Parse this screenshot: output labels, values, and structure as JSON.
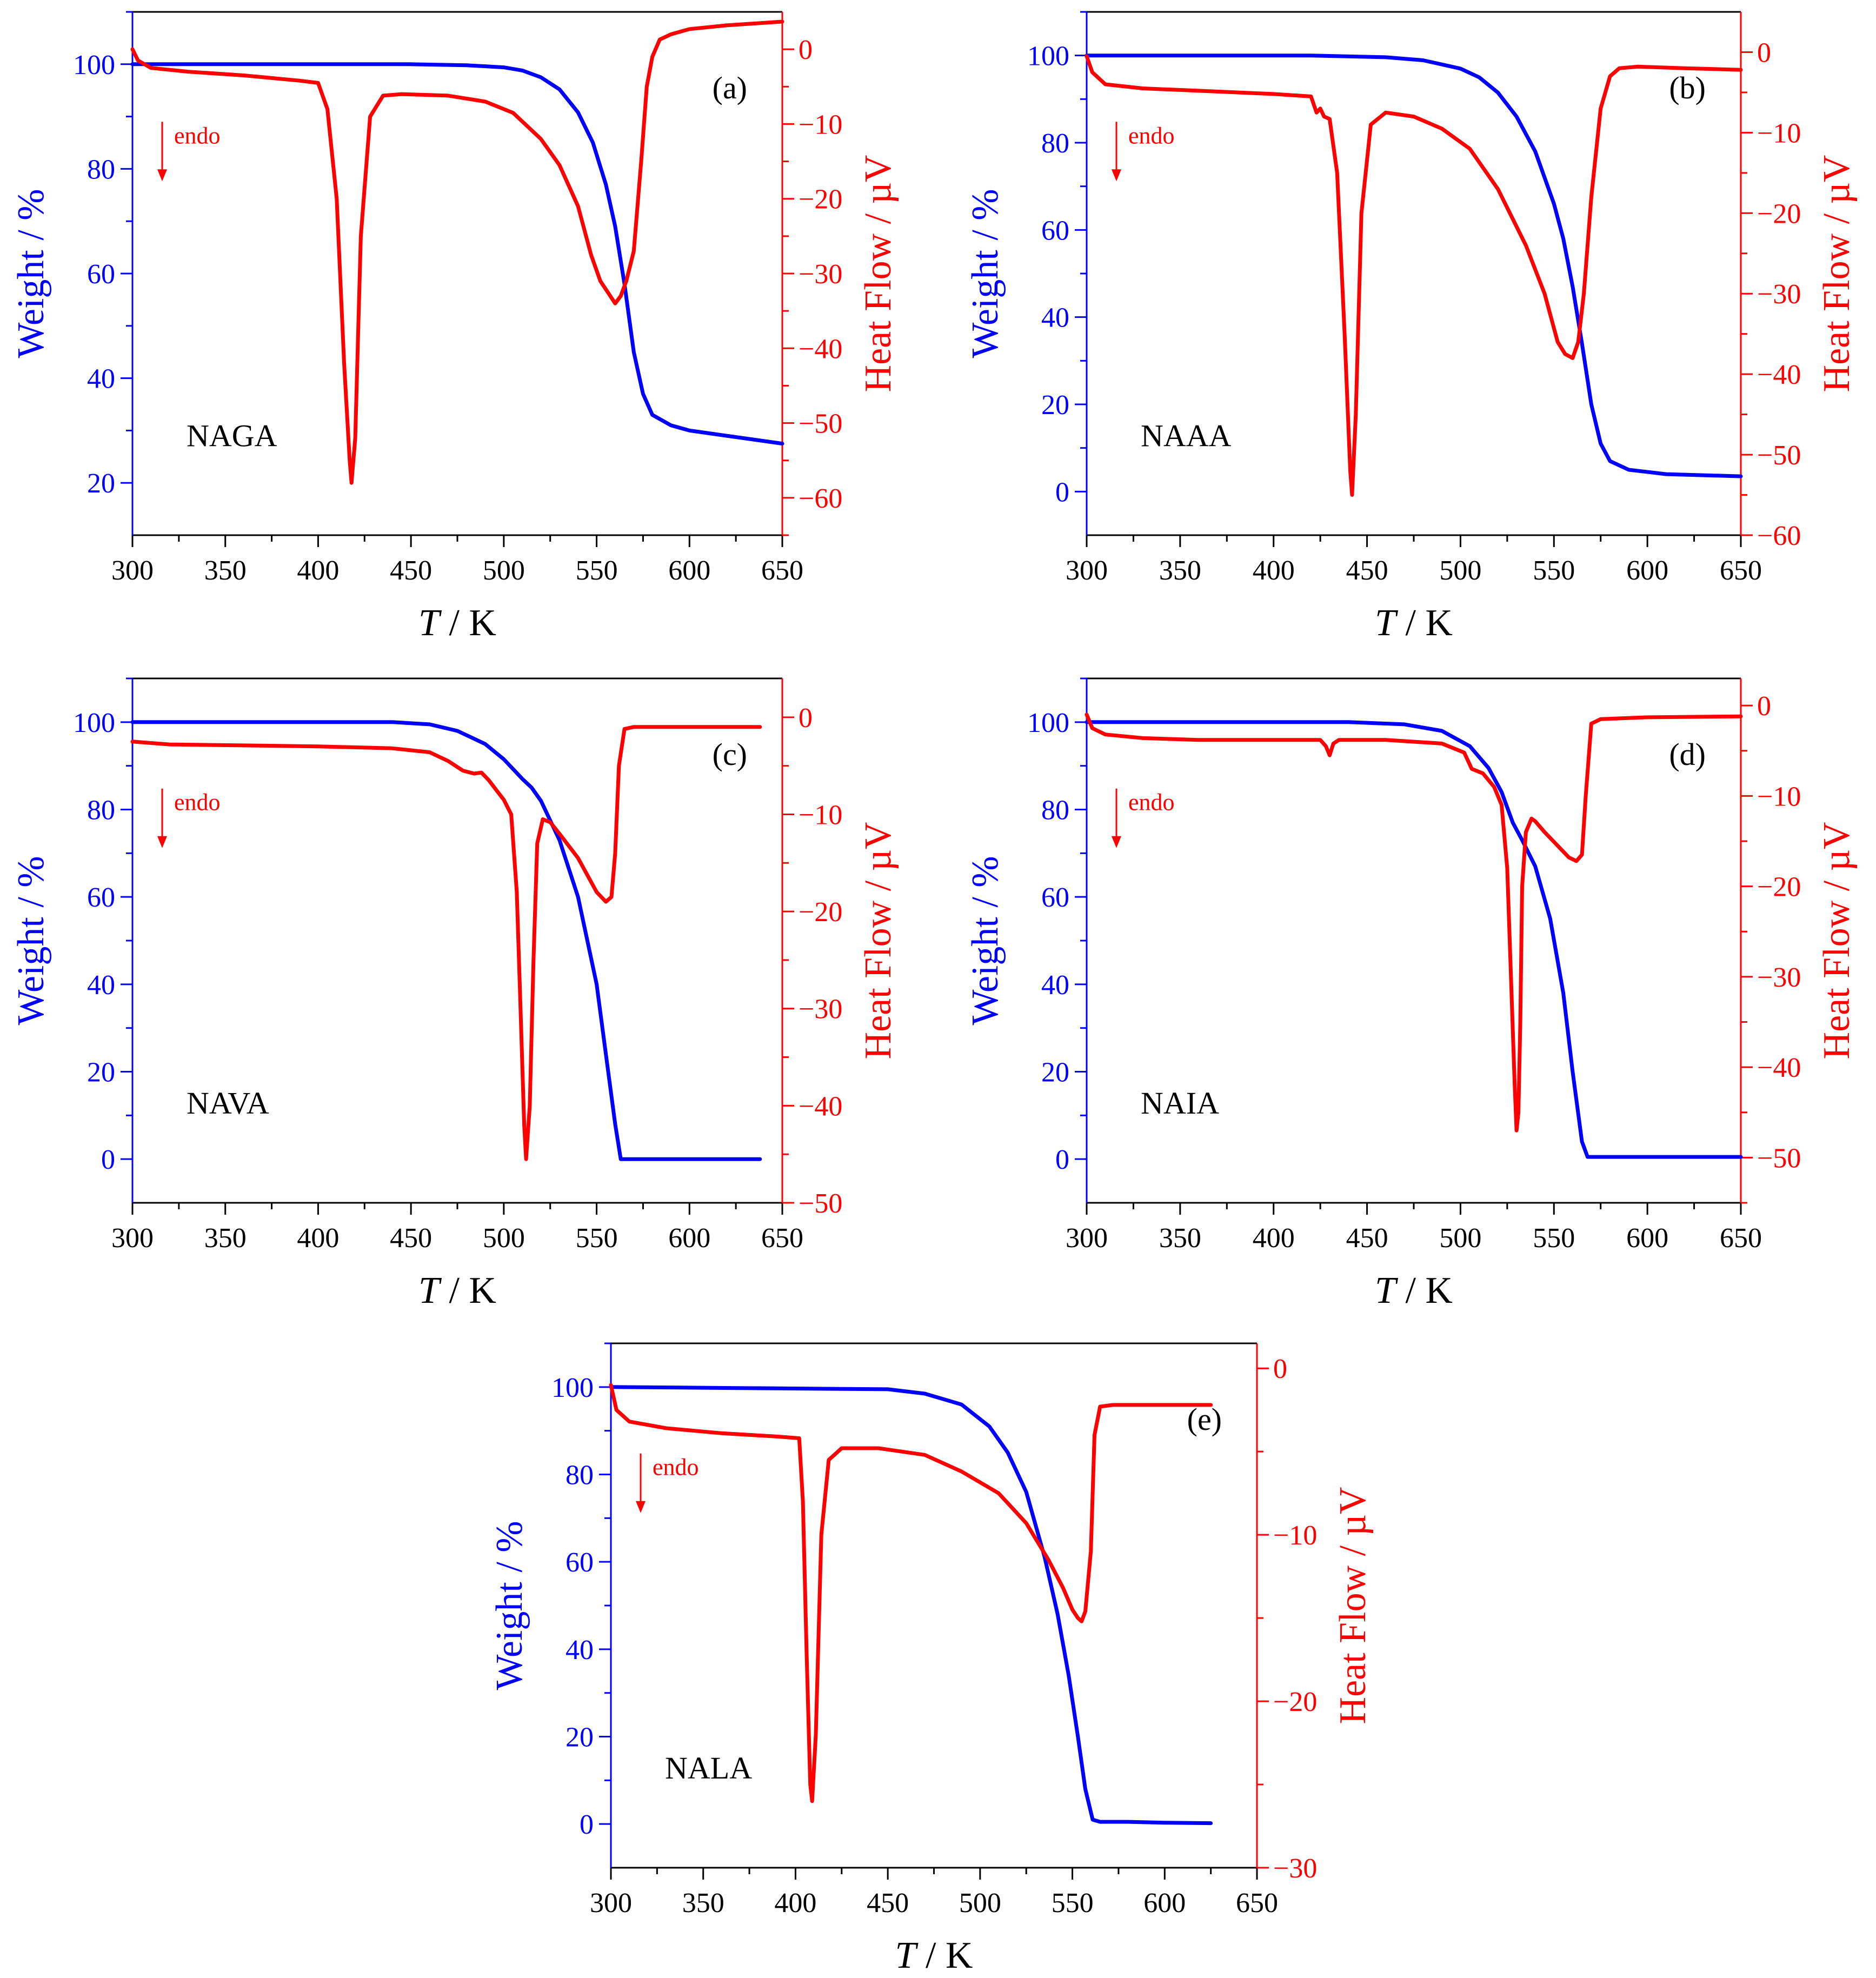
{
  "figure": {
    "description_colors": {
      "weight": "#0000ff",
      "heat_flow": "#ff0000",
      "axis": "#000000"
    }
  },
  "chart_data": [
    {
      "panel": "(a)",
      "sample": "NAGA",
      "type": "line",
      "xlabel_italic": "T",
      "xlabel_unit": " / K",
      "ylabel_left": "Weight / %",
      "ylabel_right": "Heat Flow / µV",
      "endo_label": "endo",
      "xlim": [
        300,
        650
      ],
      "ylim_left": [
        10,
        110
      ],
      "ylim_right": [
        -65,
        5
      ],
      "xticks": [
        300,
        350,
        400,
        450,
        500,
        550,
        600,
        650
      ],
      "xtick_labels": [
        "300",
        "350",
        "400",
        "450",
        "500",
        "550",
        "600",
        "650"
      ],
      "yticks_left": [
        20,
        40,
        60,
        80,
        100
      ],
      "ytick_labels_left": [
        "20",
        "40",
        "60",
        "80",
        "100"
      ],
      "yticks_right": [
        0,
        -10,
        -20,
        -30,
        -40,
        -50,
        -60
      ],
      "ytick_labels_right": [
        "0",
        "−10",
        "−20",
        "−30",
        "−40",
        "−50",
        "−60"
      ],
      "series": [
        {
          "name": "Weight",
          "axis": "left",
          "color": "#0000ff",
          "x": [
            300,
            400,
            450,
            480,
            500,
            510,
            520,
            530,
            540,
            548,
            555,
            560,
            565,
            570,
            575,
            580,
            590,
            600,
            620,
            650
          ],
          "y": [
            100,
            100,
            100,
            99.8,
            99.4,
            98.8,
            97.5,
            95.2,
            90.8,
            85,
            77,
            69,
            58,
            45,
            37,
            33,
            31,
            30,
            29,
            27.5
          ]
        },
        {
          "name": "Heat Flow",
          "axis": "right",
          "color": "#ff0000",
          "x": [
            300,
            303,
            310,
            330,
            360,
            390,
            400,
            405,
            410,
            414,
            417,
            418,
            420,
            423,
            428,
            435,
            445,
            470,
            490,
            505,
            520,
            530,
            540,
            547,
            552,
            556,
            560,
            563,
            566,
            570,
            574,
            577,
            580,
            584,
            590,
            600,
            620,
            650
          ],
          "y": [
            0,
            -1.5,
            -2.5,
            -3,
            -3.5,
            -4.2,
            -4.5,
            -8,
            -20,
            -42,
            -55,
            -58,
            -52,
            -25,
            -9,
            -6.2,
            -6,
            -6.2,
            -7,
            -8.5,
            -12,
            -15.5,
            -21,
            -27.5,
            -31,
            -32.5,
            -34,
            -33,
            -31,
            -27,
            -15,
            -5,
            -1,
            1.3,
            2,
            2.7,
            3.2,
            3.7
          ]
        }
      ],
      "annotation_label_position": "top-right"
    },
    {
      "panel": "(b)",
      "sample": "NAAA",
      "type": "line",
      "xlabel_italic": "T",
      "xlabel_unit": " / K",
      "ylabel_left": "Weight / %",
      "ylabel_right": "Heat Flow / µV",
      "endo_label": "endo",
      "xlim": [
        300,
        650
      ],
      "ylim_left": [
        -10,
        110
      ],
      "ylim_right": [
        -60,
        5
      ],
      "xticks": [
        300,
        350,
        400,
        450,
        500,
        550,
        600,
        650
      ],
      "xtick_labels": [
        "300",
        "350",
        "400",
        "450",
        "500",
        "550",
        "600",
        "650"
      ],
      "yticks_left": [
        0,
        20,
        40,
        60,
        80,
        100
      ],
      "ytick_labels_left": [
        "0",
        "20",
        "40",
        "60",
        "80",
        "100"
      ],
      "yticks_right": [
        0,
        -10,
        -20,
        -30,
        -40,
        -50,
        -60
      ],
      "ytick_labels_right": [
        "0",
        "−10",
        "−20",
        "−30",
        "−40",
        "−50",
        "−60"
      ],
      "series": [
        {
          "name": "Weight",
          "axis": "left",
          "color": "#0000ff",
          "x": [
            300,
            420,
            460,
            480,
            500,
            510,
            520,
            530,
            540,
            550,
            555,
            560,
            565,
            570,
            575,
            580,
            590,
            610,
            650
          ],
          "y": [
            100,
            100,
            99.6,
            98.9,
            97,
            95,
            91.5,
            86,
            78,
            66,
            58,
            47,
            34,
            20,
            11,
            7,
            5,
            4,
            3.5
          ]
        },
        {
          "name": "Heat Flow",
          "axis": "right",
          "color": "#ff0000",
          "x": [
            300,
            303,
            310,
            330,
            360,
            400,
            420,
            423,
            425,
            427,
            430,
            434,
            438,
            441,
            442,
            444,
            447,
            452,
            460,
            475,
            490,
            505,
            520,
            535,
            545,
            552,
            556,
            560,
            563,
            566,
            570,
            575,
            580,
            585,
            595,
            620,
            650
          ],
          "y": [
            -0.5,
            -2.5,
            -4,
            -4.5,
            -4.8,
            -5.2,
            -5.5,
            -7.5,
            -7,
            -8,
            -8.3,
            -15,
            -35,
            -52,
            -55,
            -45,
            -20,
            -9,
            -7.5,
            -8,
            -9.5,
            -12,
            -17,
            -24,
            -30,
            -36,
            -37.5,
            -38,
            -36,
            -30,
            -18,
            -7,
            -3,
            -2,
            -1.8,
            -2,
            -2.2
          ]
        }
      ],
      "annotation_label_position": "top-right"
    },
    {
      "panel": "(c)",
      "sample": "NAVA",
      "type": "line",
      "xlabel_italic": "T",
      "xlabel_unit": " / K",
      "ylabel_left": "Weight / %",
      "ylabel_right": "Heat Flow / µV",
      "endo_label": "endo",
      "xlim": [
        300,
        650
      ],
      "ylim_left": [
        -10,
        110
      ],
      "ylim_right": [
        -50,
        4
      ],
      "xticks": [
        300,
        350,
        400,
        450,
        500,
        550,
        600,
        650
      ],
      "xtick_labels": [
        "300",
        "350",
        "400",
        "450",
        "500",
        "550",
        "600",
        "650"
      ],
      "yticks_left": [
        0,
        20,
        40,
        60,
        80,
        100
      ],
      "ytick_labels_left": [
        "0",
        "20",
        "40",
        "60",
        "80",
        "100"
      ],
      "yticks_right": [
        0,
        -10,
        -20,
        -30,
        -40,
        -50
      ],
      "ytick_labels_right": [
        "0",
        "−10",
        "−20",
        "−30",
        "−40",
        "−50"
      ],
      "series": [
        {
          "name": "Weight",
          "axis": "left",
          "color": "#0000ff",
          "x": [
            300,
            440,
            460,
            475,
            490,
            500,
            510,
            515,
            520,
            530,
            540,
            550,
            555,
            560,
            563,
            570,
            600,
            638
          ],
          "y": [
            100,
            100,
            99.5,
            98,
            95,
            91.5,
            87,
            85,
            82,
            73,
            60,
            40,
            24,
            8,
            0,
            0,
            0,
            0
          ]
        },
        {
          "name": "Heat Flow",
          "axis": "right",
          "color": "#ff0000",
          "x": [
            300,
            320,
            360,
            400,
            440,
            460,
            470,
            478,
            484,
            488,
            492,
            496,
            500,
            504,
            507,
            509,
            511,
            512,
            514,
            516,
            518,
            521,
            525,
            530,
            540,
            550,
            555,
            558,
            560,
            562,
            565,
            570,
            600,
            638
          ],
          "y": [
            -2.5,
            -2.8,
            -2.9,
            -3,
            -3.2,
            -3.6,
            -4.5,
            -5.5,
            -5.8,
            -5.7,
            -6.5,
            -7.5,
            -8.5,
            -10,
            -18,
            -30,
            -42,
            -45.5,
            -40,
            -25,
            -13,
            -10.5,
            -10.8,
            -12,
            -14.5,
            -18,
            -19,
            -18.5,
            -14,
            -5,
            -1.2,
            -1,
            -1,
            -1
          ]
        }
      ],
      "annotation_label_position": "top-right"
    },
    {
      "panel": "(d)",
      "sample": "NAIA",
      "type": "line",
      "xlabel_italic": "T",
      "xlabel_unit": " / K",
      "ylabel_left": "Weight / %",
      "ylabel_right": "Heat Flow / µV",
      "endo_label": "endo",
      "xlim": [
        300,
        650
      ],
      "ylim_left": [
        -10,
        110
      ],
      "ylim_right": [
        -55,
        3
      ],
      "xticks": [
        300,
        350,
        400,
        450,
        500,
        550,
        600,
        650
      ],
      "xtick_labels": [
        "300",
        "350",
        "400",
        "450",
        "500",
        "550",
        "600",
        "650"
      ],
      "yticks_left": [
        0,
        20,
        40,
        60,
        80,
        100
      ],
      "ytick_labels_left": [
        "0",
        "20",
        "40",
        "60",
        "80",
        "100"
      ],
      "yticks_right": [
        0,
        -10,
        -20,
        -30,
        -40,
        -50
      ],
      "ytick_labels_right": [
        "0",
        "−10",
        "−20",
        "−30",
        "−40",
        "−50"
      ],
      "series": [
        {
          "name": "Weight",
          "axis": "left",
          "color": "#0000ff",
          "x": [
            300,
            440,
            470,
            490,
            505,
            515,
            522,
            528,
            533,
            540,
            548,
            555,
            560,
            565,
            568,
            580,
            650
          ],
          "y": [
            100,
            100,
            99.5,
            98,
            94.5,
            89.5,
            84,
            77,
            73,
            67,
            55,
            38,
            20,
            4,
            0.5,
            0.5,
            0.5
          ]
        },
        {
          "name": "Heat Flow",
          "axis": "right",
          "color": "#ff0000",
          "x": [
            300,
            303,
            310,
            330,
            360,
            400,
            425,
            428,
            430,
            432,
            435,
            460,
            490,
            502,
            506,
            512,
            518,
            522,
            525,
            527,
            529,
            530,
            531,
            532,
            533,
            535,
            538,
            540,
            545,
            552,
            558,
            562,
            565,
            567,
            570,
            575,
            600,
            650
          ],
          "y": [
            -1,
            -2.5,
            -3.2,
            -3.6,
            -3.8,
            -3.8,
            -3.8,
            -4.5,
            -5.5,
            -4.2,
            -3.8,
            -3.8,
            -4.2,
            -5.2,
            -7,
            -7.5,
            -9,
            -11,
            -18,
            -30,
            -42,
            -47,
            -45,
            -35,
            -20,
            -14,
            -12.5,
            -12.8,
            -14,
            -15.5,
            -16.8,
            -17.2,
            -16.5,
            -10,
            -2,
            -1.5,
            -1.3,
            -1.2
          ]
        }
      ],
      "annotation_label_position": "top-right"
    },
    {
      "panel": "(e)",
      "sample": "NALA",
      "type": "line",
      "xlabel_italic": "T",
      "xlabel_unit": " / K",
      "ylabel_left": "Weight / %",
      "ylabel_right": "Heat Flow / µV",
      "endo_label": "endo",
      "xlim": [
        300,
        650
      ],
      "ylim_left": [
        -10,
        110
      ],
      "ylim_right": [
        -30,
        1.5
      ],
      "xticks": [
        300,
        350,
        400,
        450,
        500,
        550,
        600,
        650
      ],
      "xtick_labels": [
        "300",
        "350",
        "400",
        "450",
        "500",
        "550",
        "600",
        "650"
      ],
      "yticks_left": [
        0,
        20,
        40,
        60,
        80,
        100
      ],
      "ytick_labels_left": [
        "0",
        "20",
        "40",
        "60",
        "80",
        "100"
      ],
      "yticks_right": [
        0,
        -10,
        -20,
        -30
      ],
      "ytick_labels_right": [
        "0",
        "−10",
        "−20",
        "−30"
      ],
      "series": [
        {
          "name": "Weight",
          "axis": "left",
          "color": "#0000ff",
          "x": [
            300,
            450,
            470,
            490,
            505,
            515,
            525,
            535,
            542,
            548,
            553,
            557,
            561,
            565,
            580,
            600,
            625
          ],
          "y": [
            100,
            99.5,
            98.5,
            96,
            91,
            85,
            76,
            61,
            48,
            34,
            20,
            8,
            1,
            0.5,
            0.5,
            0.3,
            0.2
          ]
        },
        {
          "name": "Heat Flow",
          "axis": "right",
          "color": "#ff0000",
          "x": [
            300,
            303,
            310,
            330,
            360,
            390,
            402,
            404,
            406,
            408,
            409,
            411,
            414,
            418,
            425,
            445,
            470,
            490,
            510,
            525,
            537,
            545,
            550,
            553,
            555,
            557,
            560,
            562,
            565,
            572,
            600,
            625
          ],
          "y": [
            -1,
            -2.5,
            -3.2,
            -3.6,
            -3.9,
            -4.1,
            -4.2,
            -8,
            -17,
            -25,
            -26,
            -22,
            -10,
            -5.5,
            -4.8,
            -4.8,
            -5.2,
            -6.2,
            -7.5,
            -9.3,
            -11.5,
            -13.2,
            -14.5,
            -15,
            -15.2,
            -14.6,
            -11,
            -4,
            -2.3,
            -2.2,
            -2.2,
            -2.2
          ]
        }
      ],
      "annotation_label_position": "top-right"
    }
  ]
}
